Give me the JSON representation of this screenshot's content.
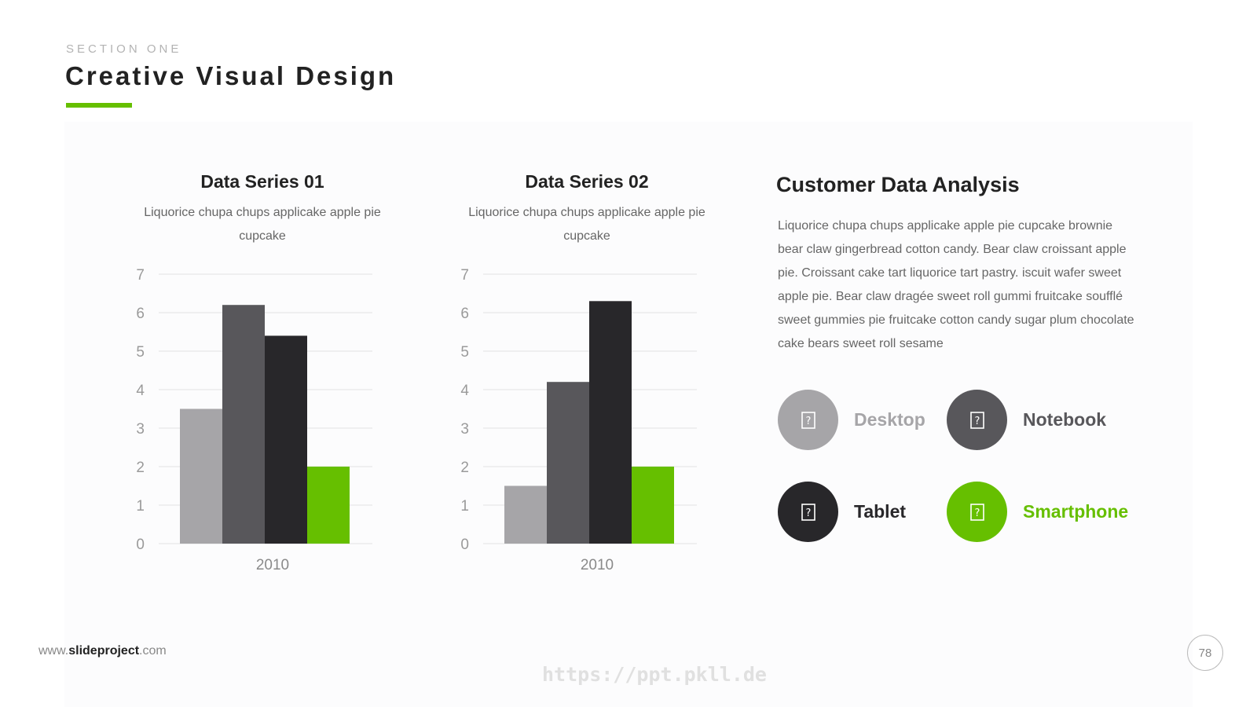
{
  "header": {
    "section_label": "SECTION ONE",
    "title": "Creative Visual Design"
  },
  "colors": {
    "accent": "#66bf00",
    "light_gray": "#a6a5a8",
    "mid_gray": "#58575b",
    "dark": "#28272a"
  },
  "chart_data": [
    {
      "type": "bar",
      "title": "Data Series 01",
      "description": [
        "Liquorice chupa chups applicake apple pie",
        "cupcake"
      ],
      "categories": [
        "2010"
      ],
      "series": [
        {
          "values": [
            3.5
          ],
          "color": "#a6a5a8"
        },
        {
          "values": [
            6.2
          ],
          "color": "#58575b"
        },
        {
          "values": [
            5.4
          ],
          "color": "#28272a"
        },
        {
          "values": [
            2.0
          ],
          "color": "#66bf00"
        }
      ],
      "ylim": [
        0,
        7
      ],
      "yticks": [
        "0",
        "1",
        "2",
        "3",
        "4",
        "5",
        "6",
        "7"
      ],
      "grid": true,
      "xlabel": "",
      "ylabel": ""
    },
    {
      "type": "bar",
      "title": "Data Series 02",
      "description": [
        "Liquorice chupa chups applicake apple pie",
        "cupcake"
      ],
      "categories": [
        "2010"
      ],
      "series": [
        {
          "values": [
            1.5
          ],
          "color": "#a6a5a8"
        },
        {
          "values": [
            4.2
          ],
          "color": "#58575b"
        },
        {
          "values": [
            6.3
          ],
          "color": "#28272a"
        },
        {
          "values": [
            2.0
          ],
          "color": "#66bf00"
        }
      ],
      "ylim": [
        0,
        7
      ],
      "yticks": [
        "0",
        "1",
        "2",
        "3",
        "4",
        "5",
        "6",
        "7"
      ],
      "grid": true,
      "xlabel": "",
      "ylabel": ""
    }
  ],
  "analysis": {
    "title": "Customer Data Analysis",
    "body": "Liquorice chupa chups applicake apple pie cupcake brownie bear claw gingerbread cotton candy. Bear claw croissant apple pie. Croissant cake tart liquorice tart pastry. iscuit wafer sweet apple pie. Bear claw dragée sweet roll gummi fruitcake soufflé sweet gummies pie fruitcake cotton candy sugar plum chocolate cake bears sweet roll sesame"
  },
  "devices": [
    {
      "label": "Desktop",
      "icon": "desktop-icon",
      "color": "#a6a5a8",
      "text_color": "#a6a5a8"
    },
    {
      "label": "Notebook",
      "icon": "notebook-icon",
      "color": "#58575b",
      "text_color": "#58575b"
    },
    {
      "label": "Tablet",
      "icon": "tablet-icon",
      "color": "#28272a",
      "text_color": "#28272a"
    },
    {
      "label": "Smartphone",
      "icon": "smartphone-icon",
      "color": "#66bf00",
      "text_color": "#66bf00"
    }
  ],
  "footer": {
    "url_prefix": "www.",
    "url_brand": "slideproject",
    "url_suffix": ".com",
    "page_number": "78",
    "watermark": "https://ppt.pkll.de"
  }
}
